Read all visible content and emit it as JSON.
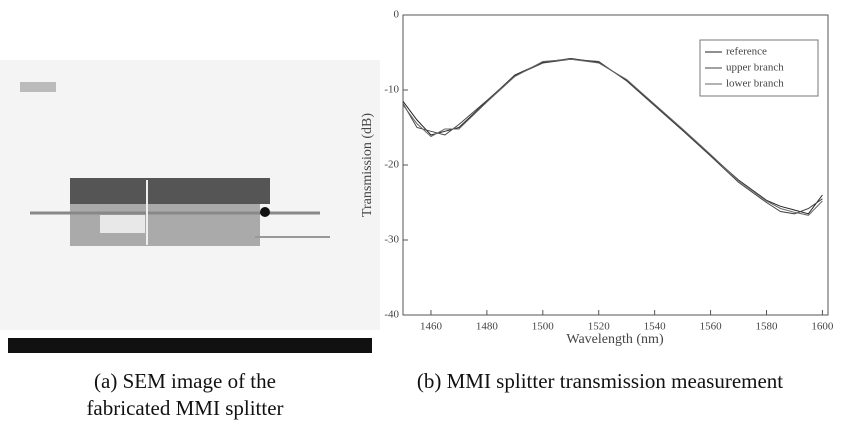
{
  "chart_data": {
    "type": "line",
    "x_label": "Wavelength (nm)",
    "y_label": "Transmission (dB)",
    "x": [
      1450,
      1455,
      1460,
      1465,
      1470,
      1480,
      1490,
      1500,
      1510,
      1520,
      1530,
      1540,
      1550,
      1560,
      1570,
      1580,
      1585,
      1590,
      1595,
      1600
    ],
    "series": [
      {
        "name": "reference",
        "color": "#222222",
        "values": [
          -11.5,
          -14,
          -16,
          -15.5,
          -15,
          -11.5,
          -8,
          -6.3,
          -5.8,
          -6.3,
          -8.7,
          -12,
          -15.3,
          -18.7,
          -22,
          -24.7,
          -25.5,
          -26,
          -26.5,
          -24
        ]
      },
      {
        "name": "upper branch",
        "color": "#444444",
        "values": [
          -11.8,
          -15,
          -15.5,
          -16,
          -14.6,
          -11.4,
          -8.1,
          -6.4,
          -5.9,
          -6.2,
          -8.8,
          -12.1,
          -15.4,
          -18.8,
          -22.3,
          -25,
          -26.2,
          -26.5,
          -25.8,
          -24.5
        ]
      },
      {
        "name": "lower branch",
        "color": "#666666",
        "values": [
          -12,
          -14.5,
          -16.2,
          -15.2,
          -15.2,
          -11.6,
          -8.2,
          -6.2,
          -5.9,
          -6.4,
          -8.6,
          -11.9,
          -15.2,
          -18.6,
          -22.1,
          -24.8,
          -25.8,
          -26.3,
          -26.7,
          -24.8
        ]
      }
    ],
    "xlim": [
      1450,
      1602
    ],
    "ylim": [
      -40,
      0
    ],
    "xticks": [
      1460,
      1480,
      1500,
      1520,
      1540,
      1560,
      1580,
      1600
    ],
    "yticks": [
      0,
      -10,
      -20,
      -30,
      -40
    ],
    "legend": "upper right"
  },
  "captions": {
    "a": [
      "(a) SEM image of the",
      "fabricated MMI splitter"
    ],
    "b": "(b) MMI splitter transmission measurement"
  }
}
